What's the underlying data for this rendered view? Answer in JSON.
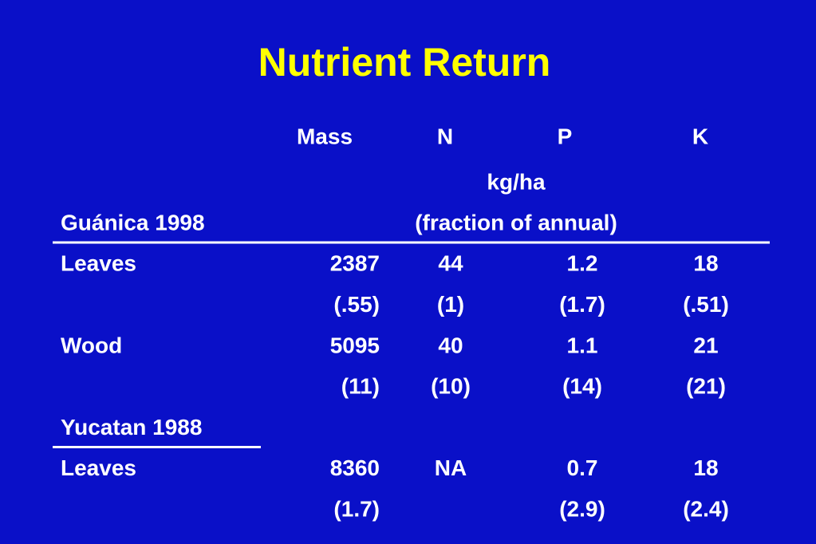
{
  "title": "Nutrient Return",
  "columns": [
    "Mass",
    "N",
    "P",
    "K"
  ],
  "unit": "kg/ha",
  "groups": [
    {
      "site": "Guánica 1998",
      "note": "(fraction of annual)",
      "rows": [
        {
          "label": "Leaves",
          "cells": [
            "2387",
            "44",
            "1.2",
            "18"
          ]
        },
        {
          "label": null,
          "cells": [
            "(.55)",
            "(1)",
            "(1.7)",
            "(.51)"
          ]
        },
        {
          "label": "Wood",
          "cells": [
            "5095",
            "40",
            "1.1",
            "21"
          ]
        },
        {
          "label": null,
          "cells": [
            "(11)",
            "(10)",
            "(14)",
            "(21)"
          ]
        }
      ]
    },
    {
      "site": "Yucatan 1988",
      "note": null,
      "rows": [
        {
          "label": "Leaves",
          "cells": [
            "8360",
            "NA",
            "0.7",
            "18"
          ]
        },
        {
          "label": null,
          "cells": [
            "(1.7)",
            null,
            "(2.9)",
            "(2.4)"
          ]
        }
      ]
    }
  ]
}
